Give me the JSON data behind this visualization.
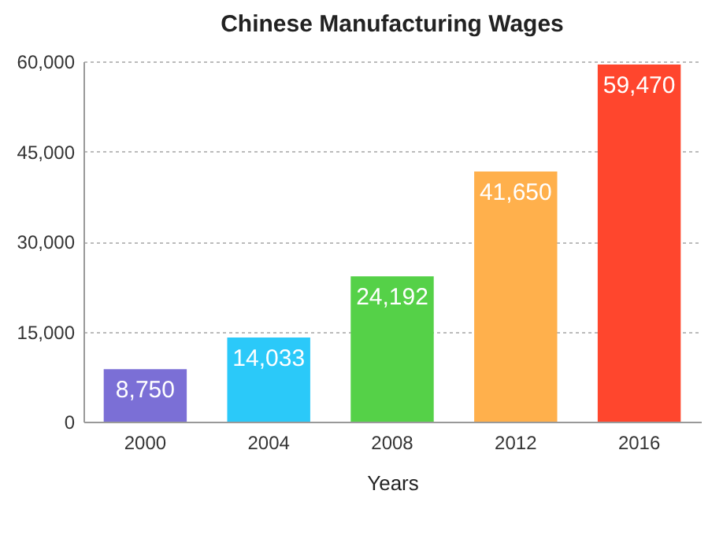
{
  "chart_data": {
    "type": "bar",
    "title": "Chinese Manufacturing Wages",
    "xlabel": "Years",
    "categories": [
      "2000",
      "2004",
      "2008",
      "2012",
      "2016"
    ],
    "values": [
      8750,
      14033,
      24192,
      41650,
      59470
    ],
    "value_labels": [
      "8,750",
      "14,033",
      "24,192",
      "41,650",
      "59,470"
    ],
    "colors": [
      "#7b6fd6",
      "#2bc9f9",
      "#55d148",
      "#ffb04c",
      "#ff462d"
    ],
    "ylim": [
      0,
      60000
    ],
    "yticks": [
      0,
      {
        "value": 15000,
        "label": "15,000"
      },
      {
        "value": 30000,
        "label": "30,000"
      },
      {
        "value": 45000,
        "label": "45,000"
      },
      {
        "value": 60000,
        "label": "60,000"
      }
    ],
    "grid": "y"
  }
}
